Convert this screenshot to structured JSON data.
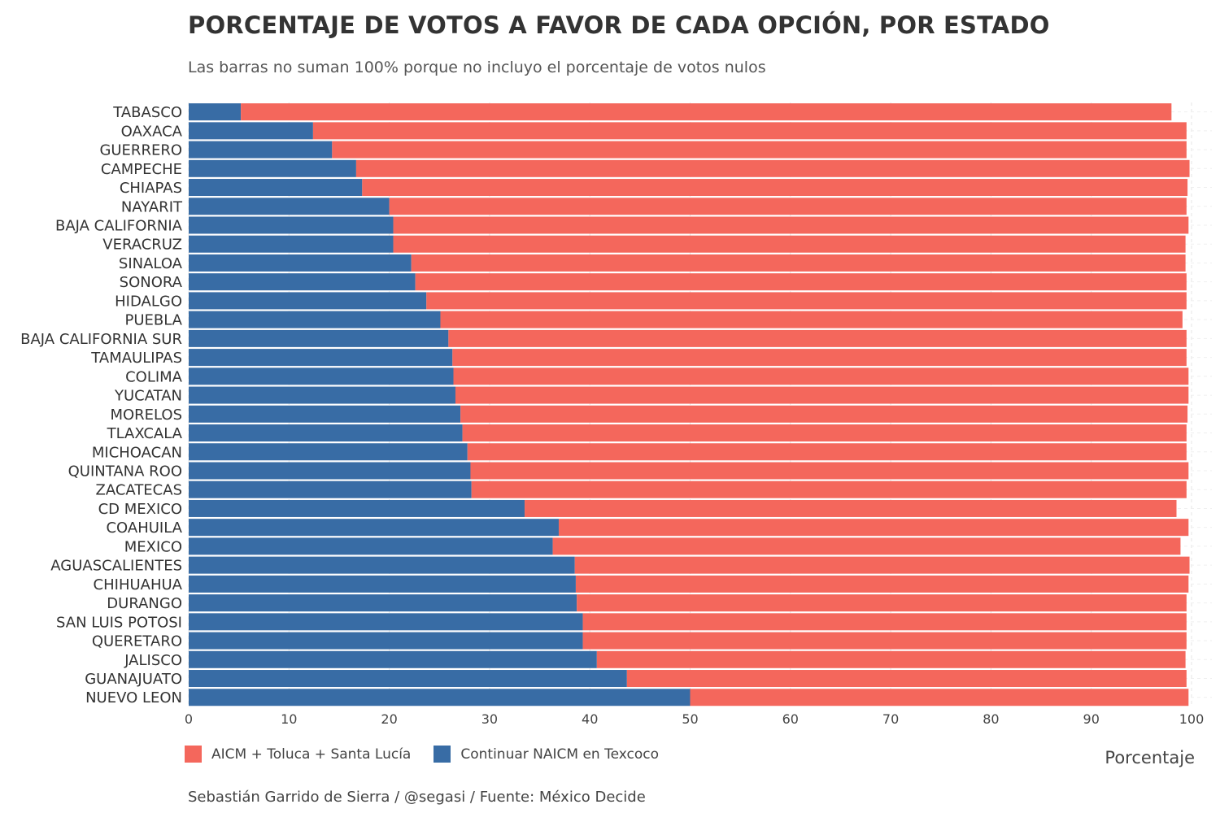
{
  "chart_data": {
    "type": "bar",
    "orientation": "horizontal",
    "stacked": true,
    "title": "PORCENTAJE DE VOTOS A FAVOR DE CADA OPCIÓN, POR ESTADO",
    "subtitle": "Las barras no suman 100% porque no incluyo el porcentaje de votos nulos",
    "xlabel": "Porcentaje",
    "caption": "Sebastián Garrido de Sierra / @segasi / Fuente: México Decide",
    "xlim": [
      0,
      100
    ],
    "xticks": [
      "0",
      "10",
      "20",
      "30",
      "40",
      "50",
      "60",
      "70",
      "80",
      "90",
      "100"
    ],
    "legend_position": "bottom-left",
    "grid": true,
    "categories": [
      "TABASCO",
      "OAXACA",
      "GUERRERO",
      "CAMPECHE",
      "CHIAPAS",
      "NAYARIT",
      "BAJA CALIFORNIA",
      "VERACRUZ",
      "SINALOA",
      "SONORA",
      "HIDALGO",
      "PUEBLA",
      "BAJA CALIFORNIA SUR",
      "TAMAULIPAS",
      "COLIMA",
      "YUCATAN",
      "MORELOS",
      "TLAXCALA",
      "MICHOACAN",
      "QUINTANA ROO",
      "ZACATECAS",
      "CD MEXICO",
      "COAHUILA",
      "MEXICO",
      "AGUASCALIENTES",
      "CHIHUAHUA",
      "DURANGO",
      "SAN LUIS POTOSI",
      "QUERETARO",
      "JALISCO",
      "GUANAJUATO",
      "NUEVO LEON"
    ],
    "series": [
      {
        "name": "Continuar NAICM en Texcoco",
        "color": "#386CA5",
        "values": [
          5.2,
          12.4,
          14.3,
          16.7,
          17.3,
          20.0,
          20.4,
          20.4,
          22.2,
          22.6,
          23.7,
          25.1,
          25.9,
          26.3,
          26.4,
          26.6,
          27.1,
          27.3,
          27.8,
          28.1,
          28.2,
          33.5,
          36.9,
          36.3,
          38.5,
          38.6,
          38.7,
          39.3,
          39.3,
          40.7,
          43.7,
          50.0
        ]
      },
      {
        "name": "AICM + Toluca + Santa Lucía",
        "color": "#F4675C",
        "values": [
          92.8,
          87.1,
          85.2,
          83.1,
          82.3,
          79.5,
          79.3,
          79.0,
          77.2,
          76.9,
          75.8,
          74.0,
          73.6,
          73.2,
          73.3,
          73.1,
          72.5,
          72.2,
          71.7,
          71.6,
          71.3,
          65.0,
          62.8,
          62.6,
          61.3,
          61.1,
          60.8,
          60.2,
          60.2,
          58.7,
          55.8,
          49.7
        ]
      }
    ]
  },
  "legend": [
    {
      "label": "AICM + Toluca + Santa Lucía",
      "color": "#F4675C"
    },
    {
      "label": "Continuar NAICM en Texcoco",
      "color": "#386CA5"
    }
  ]
}
